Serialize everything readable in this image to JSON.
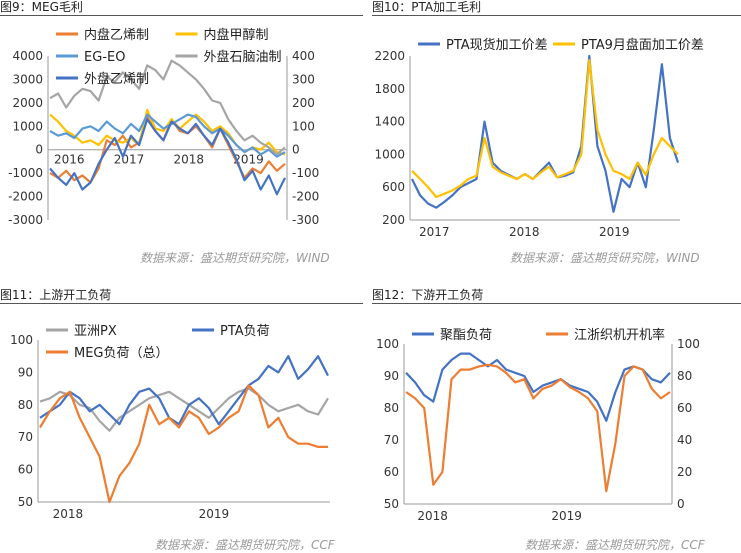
{
  "panels": [
    {
      "title": "图9：MEG毛利",
      "source": "数据来源：盛达期货研究院，WIND"
    },
    {
      "title": "图10：PTA加工毛利",
      "source": "数据来源：盛达期货研究院，WIND"
    },
    {
      "title": "图11：上游开工负荷",
      "source": "数据来源：盛达期货研究院，CCF"
    },
    {
      "title": "图12：下游开工负荷",
      "source": "数据来源：盛达期货研究院，CCF"
    }
  ],
  "chart_data": [
    {
      "type": "line",
      "title": "",
      "xlabel": "",
      "ylabel": "",
      "x_ticks": [
        "2016",
        "2017",
        "2018",
        "2019"
      ],
      "ylim": [
        -3000,
        4000
      ],
      "yticks": [
        -3000,
        -2000,
        -1000,
        0,
        1000,
        2000,
        3000,
        4000
      ],
      "y2lim": [
        -300,
        400
      ],
      "y2ticks": [
        -300,
        -200,
        -100,
        0,
        100,
        200,
        300,
        400
      ],
      "grid": false,
      "legend": "top",
      "series": [
        {
          "name": "内盘乙烯制",
          "color": "#ed7d31",
          "axis": "left",
          "values": [
            -1000,
            -1200,
            -900,
            -1300,
            -1100,
            -1400,
            -800,
            400,
            200,
            600,
            100,
            300,
            1400,
            800,
            400,
            1300,
            800,
            700,
            1000,
            600,
            100,
            900,
            200,
            -500,
            -1200,
            -800,
            -1000,
            -500,
            -900,
            -600
          ]
        },
        {
          "name": "内盘甲醇制",
          "color": "#ffc000",
          "axis": "left",
          "values": [
            1500,
            1200,
            800,
            600,
            300,
            400,
            200,
            600,
            400,
            300,
            500,
            200,
            1700,
            900,
            800,
            1300,
            900,
            1200,
            1500,
            1200,
            800,
            1000,
            700,
            200,
            -100,
            100,
            0,
            300,
            -100,
            -200
          ]
        },
        {
          "name": "EG-EO",
          "color": "#5b9bd5",
          "axis": "left",
          "values": [
            800,
            600,
            700,
            500,
            900,
            1000,
            800,
            1200,
            900,
            700,
            1100,
            800,
            1500,
            1200,
            900,
            1100,
            1300,
            1500,
            1400,
            1000,
            700,
            900,
            600,
            200,
            -100,
            100,
            -200,
            0,
            -300,
            -100
          ]
        },
        {
          "name": "外盘石脑油制",
          "color": "#a5a5a5",
          "axis": "right",
          "values": [
            220,
            240,
            180,
            230,
            260,
            250,
            210,
            310,
            290,
            330,
            300,
            260,
            360,
            340,
            300,
            380,
            360,
            330,
            300,
            260,
            210,
            200,
            130,
            80,
            40,
            60,
            30,
            10,
            -20,
            10
          ]
        },
        {
          "name": "外盘乙烯制",
          "color": "#4472c4",
          "axis": "right",
          "values": [
            -80,
            -120,
            -150,
            -100,
            -170,
            -140,
            -60,
            0,
            50,
            -30,
            60,
            20,
            130,
            80,
            40,
            120,
            90,
            70,
            110,
            60,
            20,
            90,
            30,
            -40,
            -130,
            -90,
            -170,
            -110,
            -190,
            -120
          ]
        }
      ]
    },
    {
      "type": "line",
      "title": "",
      "xlabel": "",
      "ylabel": "",
      "x_ticks": [
        "2017",
        "2018",
        "2019"
      ],
      "ylim": [
        200,
        2200
      ],
      "yticks": [
        200,
        600,
        1000,
        1400,
        1800,
        2200
      ],
      "grid": false,
      "legend": "top",
      "series": [
        {
          "name": "PTA现货加工价差",
          "color": "#4472c4",
          "values": [
            700,
            500,
            400,
            350,
            420,
            500,
            600,
            650,
            700,
            1400,
            900,
            800,
            750,
            700,
            760,
            700,
            800,
            900,
            720,
            740,
            780,
            1100,
            2200,
            1100,
            800,
            300,
            700,
            600,
            900,
            600,
            1300,
            2100,
            1200,
            900
          ]
        },
        {
          "name": "PTA9月盘面加工价差",
          "color": "#ffc000",
          "values": [
            800,
            700,
            600,
            480,
            520,
            560,
            620,
            700,
            740,
            1200,
            850,
            780,
            740,
            700,
            760,
            700,
            780,
            850,
            720,
            760,
            800,
            1000,
            2150,
            1300,
            1000,
            800,
            760,
            700,
            900,
            750,
            1000,
            1200,
            1100,
            1000
          ]
        }
      ]
    },
    {
      "type": "line",
      "title": "",
      "xlabel": "",
      "ylabel": "",
      "x_ticks": [
        "2018",
        "2019"
      ],
      "ylim": [
        50,
        100
      ],
      "yticks": [
        50,
        60,
        70,
        80,
        90,
        100
      ],
      "grid": false,
      "legend": "top",
      "series": [
        {
          "name": "亚洲PX",
          "color": "#a5a5a5",
          "values": [
            81,
            82,
            84,
            83,
            80,
            79,
            75,
            72,
            76,
            78,
            80,
            82,
            83,
            84,
            82,
            80,
            78,
            76,
            79,
            82,
            84,
            85,
            83,
            80,
            78,
            79,
            80,
            78,
            77,
            82
          ]
        },
        {
          "name": "PTA负荷",
          "color": "#4472c4",
          "values": [
            76,
            78,
            80,
            84,
            82,
            78,
            80,
            77,
            74,
            80,
            84,
            85,
            82,
            76,
            74,
            80,
            82,
            79,
            74,
            78,
            82,
            86,
            88,
            92,
            90,
            95,
            88,
            91,
            95,
            89
          ]
        },
        {
          "name": "MEG负荷（总）",
          "color": "#ed7d31",
          "values": [
            73,
            78,
            82,
            84,
            76,
            70,
            64,
            50,
            58,
            62,
            68,
            80,
            74,
            76,
            73,
            78,
            76,
            71,
            73,
            76,
            78,
            86,
            83,
            73,
            76,
            70,
            68,
            68,
            67,
            67
          ]
        }
      ]
    },
    {
      "type": "line",
      "title": "",
      "xlabel": "",
      "ylabel": "",
      "x_ticks": [
        "2018",
        "2019"
      ],
      "ylim": [
        50,
        100
      ],
      "yticks": [
        50,
        60,
        70,
        80,
        90,
        100
      ],
      "y2lim": [
        0,
        100
      ],
      "y2ticks": [
        0,
        20,
        40,
        60,
        80,
        100
      ],
      "grid": false,
      "legend": "top",
      "series": [
        {
          "name": "聚酯负荷",
          "color": "#4472c4",
          "axis": "left",
          "values": [
            91,
            88,
            84,
            82,
            92,
            95,
            97,
            97,
            95,
            93,
            95,
            92,
            91,
            90,
            85,
            87,
            88,
            89,
            87,
            86,
            85,
            82,
            76,
            85,
            92,
            93,
            92,
            89,
            88,
            91
          ]
        },
        {
          "name": "江浙织机开机率",
          "color": "#ed7d31",
          "axis": "right",
          "values": [
            70,
            66,
            60,
            12,
            20,
            78,
            84,
            84,
            86,
            87,
            86,
            82,
            76,
            78,
            66,
            72,
            74,
            78,
            73,
            70,
            66,
            58,
            8,
            38,
            80,
            86,
            84,
            72,
            66,
            70
          ]
        }
      ]
    }
  ]
}
